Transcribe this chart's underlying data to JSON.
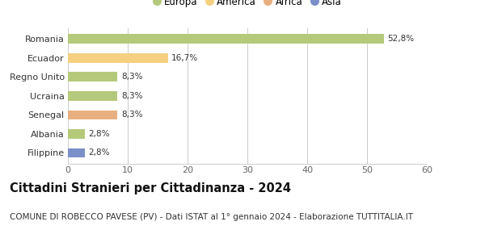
{
  "categories": [
    "Filippine",
    "Albania",
    "Senegal",
    "Ucraina",
    "Regno Unito",
    "Ecuador",
    "Romania"
  ],
  "values": [
    2.8,
    2.8,
    8.3,
    8.3,
    8.3,
    16.7,
    52.8
  ],
  "labels": [
    "2,8%",
    "2,8%",
    "8,3%",
    "8,3%",
    "8,3%",
    "16,7%",
    "52,8%"
  ],
  "colors": [
    "#7b8fc8",
    "#b5c97a",
    "#e8b080",
    "#b5c97a",
    "#b5c97a",
    "#f5d080",
    "#b5c97a"
  ],
  "legend_labels": [
    "Europa",
    "America",
    "Africa",
    "Asia"
  ],
  "legend_colors": [
    "#b5c97a",
    "#f5d080",
    "#e8b080",
    "#7b8fc8"
  ],
  "xlim": [
    0,
    60
  ],
  "xticks": [
    0,
    10,
    20,
    30,
    40,
    50,
    60
  ],
  "title": "Cittadini Stranieri per Cittadinanza - 2024",
  "subtitle": "COMUNE DI ROBECCO PAVESE (PV) - Dati ISTAT al 1° gennaio 2024 - Elaborazione TUTTITALIA.IT",
  "bar_height": 0.5,
  "title_fontsize": 10.5,
  "subtitle_fontsize": 7.5,
  "label_fontsize": 7.5,
  "tick_fontsize": 8,
  "legend_fontsize": 8.5,
  "background_color": "#ffffff",
  "grid_color": "#cccccc"
}
